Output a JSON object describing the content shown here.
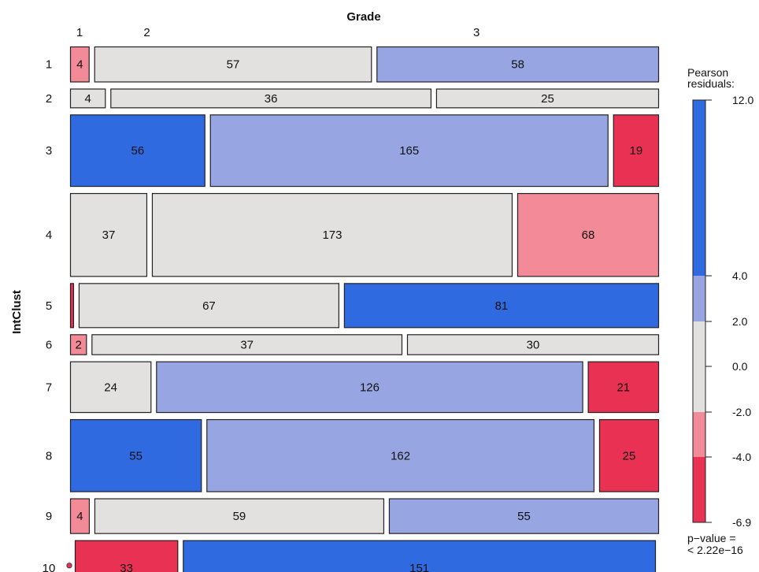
{
  "chart_data": {
    "type": "mosaic",
    "title": "Grade",
    "ylabel": "IntClust",
    "x_labels": [
      "1",
      "2",
      "3"
    ],
    "y_labels": [
      "1",
      "2",
      "3",
      "4",
      "5",
      "6",
      "7",
      "8",
      "9",
      "10"
    ],
    "cells": [
      {
        "row": "1",
        "values": [
          4,
          57,
          58
        ],
        "levels": [
          "neg_mid",
          "neutral",
          "pos_mid"
        ]
      },
      {
        "row": "2",
        "values": [
          4,
          36,
          25
        ],
        "levels": [
          "neutral",
          "neutral",
          "neutral"
        ]
      },
      {
        "row": "3",
        "values": [
          56,
          165,
          19
        ],
        "levels": [
          "pos_high",
          "pos_mid",
          "neg_high"
        ]
      },
      {
        "row": "4",
        "values": [
          37,
          173,
          68
        ],
        "levels": [
          "neutral",
          "neutral",
          "neg_mid"
        ]
      },
      {
        "row": "5",
        "values": [
          1,
          67,
          81
        ],
        "levels": [
          "neg_high",
          "neutral",
          "pos_high"
        ]
      },
      {
        "row": "6",
        "values": [
          2,
          37,
          30
        ],
        "levels": [
          "neg_mid",
          "neutral",
          "neutral"
        ]
      },
      {
        "row": "7",
        "values": [
          24,
          126,
          21
        ],
        "levels": [
          "neutral",
          "pos_mid",
          "neg_high"
        ]
      },
      {
        "row": "8",
        "values": [
          55,
          162,
          25
        ],
        "levels": [
          "pos_high",
          "pos_mid",
          "neg_high"
        ]
      },
      {
        "row": "9",
        "values": [
          4,
          59,
          55
        ],
        "levels": [
          "neg_mid",
          "neutral",
          "pos_mid"
        ]
      },
      {
        "row": "10",
        "values": [
          0,
          33,
          151
        ],
        "levels": [
          "neg_high",
          "neg_high",
          "pos_high"
        ]
      }
    ],
    "legend": {
      "title": "Pearson residuals:",
      "ticks": [
        "12.0",
        "4.0",
        "2.0",
        "0.0",
        "-2.0",
        "-4.0",
        "-6.9"
      ],
      "colors": {
        "pos_high": "#2f6ae0",
        "pos_mid": "#97a6e3",
        "neutral": "#e2e1df",
        "neg_mid": "#f28a98",
        "neg_high": "#e93153"
      },
      "pvalue_label": "p−value =",
      "pvalue": "< 2.22e−16"
    }
  }
}
